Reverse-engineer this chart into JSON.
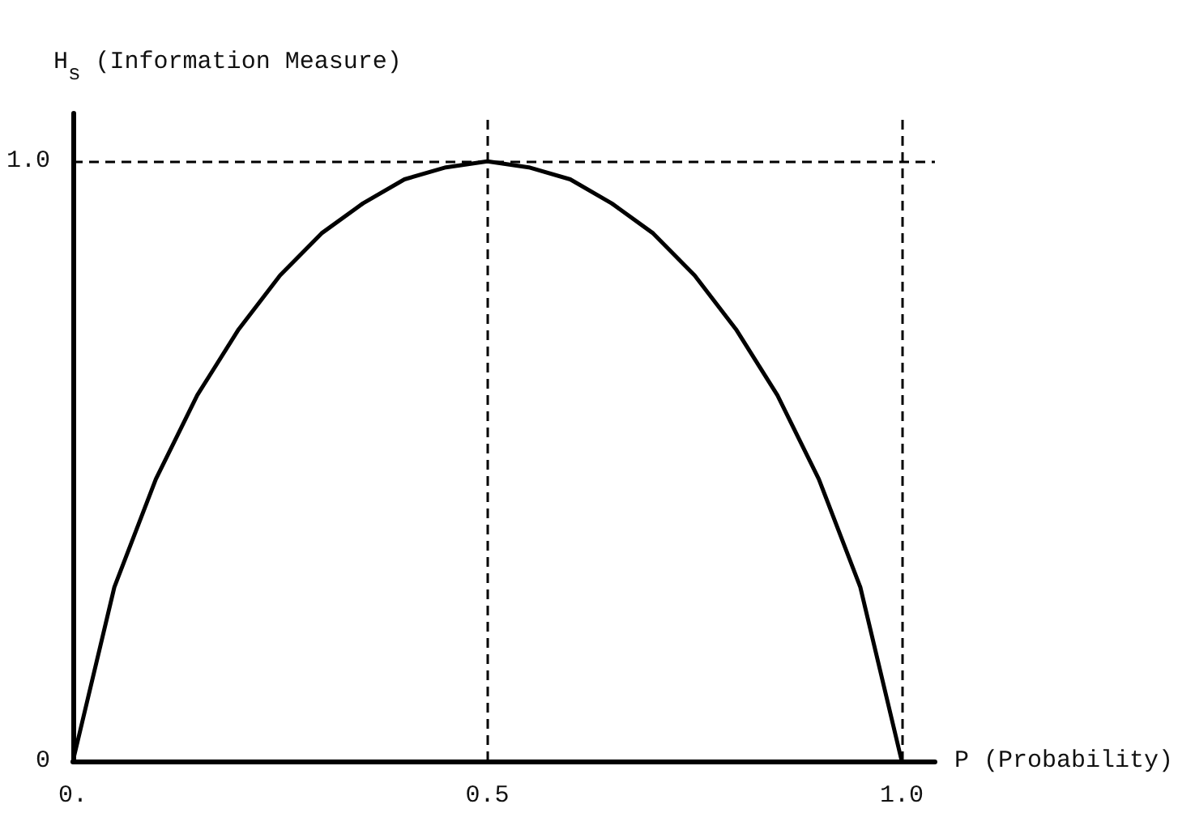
{
  "chart_data": {
    "type": "line",
    "xlabel": "P (Probability)",
    "ylabel": "H$_{s}$ (Information Measure)",
    "x": [
      0,
      0.05,
      0.1,
      0.15,
      0.2,
      0.25,
      0.3,
      0.35,
      0.4,
      0.45,
      0.5,
      0.55,
      0.6,
      0.65,
      0.7,
      0.75,
      0.8,
      0.85,
      0.9,
      0.95,
      1
    ],
    "series": [
      {
        "color": "#000000",
        "values": [
          0,
          0.29,
          0.47,
          0.61,
          0.72,
          0.81,
          0.88,
          0.93,
          0.97,
          0.99,
          1,
          0.99,
          0.97,
          0.93,
          0.88,
          0.81,
          0.72,
          0.61,
          0.47,
          0.29,
          0
        ]
      }
    ],
    "xlim": [
      0,
      1.04
    ],
    "ylim": [
      0,
      1.08
    ],
    "xticks": [
      {
        "value": 0,
        "label": "0."
      },
      0.5,
      {
        "value": 1,
        "label": "1.0"
      }
    ],
    "yticks": [
      0,
      {
        "value": 1,
        "label": "1.0"
      }
    ],
    "ref_lines": [
      {
        "axis": "y",
        "value": 1,
        "line_style": "dashed"
      },
      {
        "axis": "x",
        "value": 0.5,
        "line_style": "dashed"
      },
      {
        "axis": "x",
        "value": 1,
        "line_style": "dashed"
      }
    ],
    "grid": false,
    "marker": "none",
    "line_style": "solid"
  }
}
